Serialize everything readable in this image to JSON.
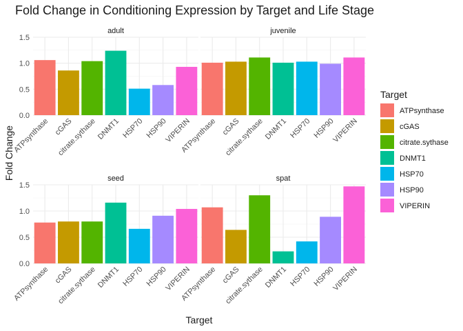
{
  "chart_data": {
    "type": "bar",
    "title": "Fold Change in Conditioning Expression by Target and Life Stage",
    "xlabel": "Target",
    "ylabel": "Fold Change",
    "ylim": [
      0,
      1.5
    ],
    "yticks": [
      "0.0",
      "0.5",
      "1.0",
      "1.5"
    ],
    "grid": true,
    "legend_position": "right",
    "legend_title": "Target",
    "categories": [
      "ATPsynthase",
      "cGAS",
      "citrate.sythase",
      "DNMT1",
      "HSP70",
      "HSP90",
      "VIPERIN"
    ],
    "colors": [
      "#F8766D",
      "#C49A00",
      "#53B400",
      "#00C094",
      "#00B6EB",
      "#A58AFF",
      "#FB61D7"
    ],
    "panels": [
      {
        "name": "adult",
        "values": [
          1.06,
          0.86,
          1.04,
          1.24,
          0.51,
          0.58,
          0.93
        ]
      },
      {
        "name": "juvenile",
        "values": [
          1.01,
          1.03,
          1.11,
          1.01,
          1.03,
          0.99,
          1.11
        ]
      },
      {
        "name": "seed",
        "values": [
          0.78,
          0.8,
          0.8,
          1.16,
          0.66,
          0.91,
          1.04
        ]
      },
      {
        "name": "spat",
        "values": [
          1.07,
          0.64,
          1.3,
          0.23,
          0.42,
          0.89,
          1.47
        ]
      }
    ]
  }
}
